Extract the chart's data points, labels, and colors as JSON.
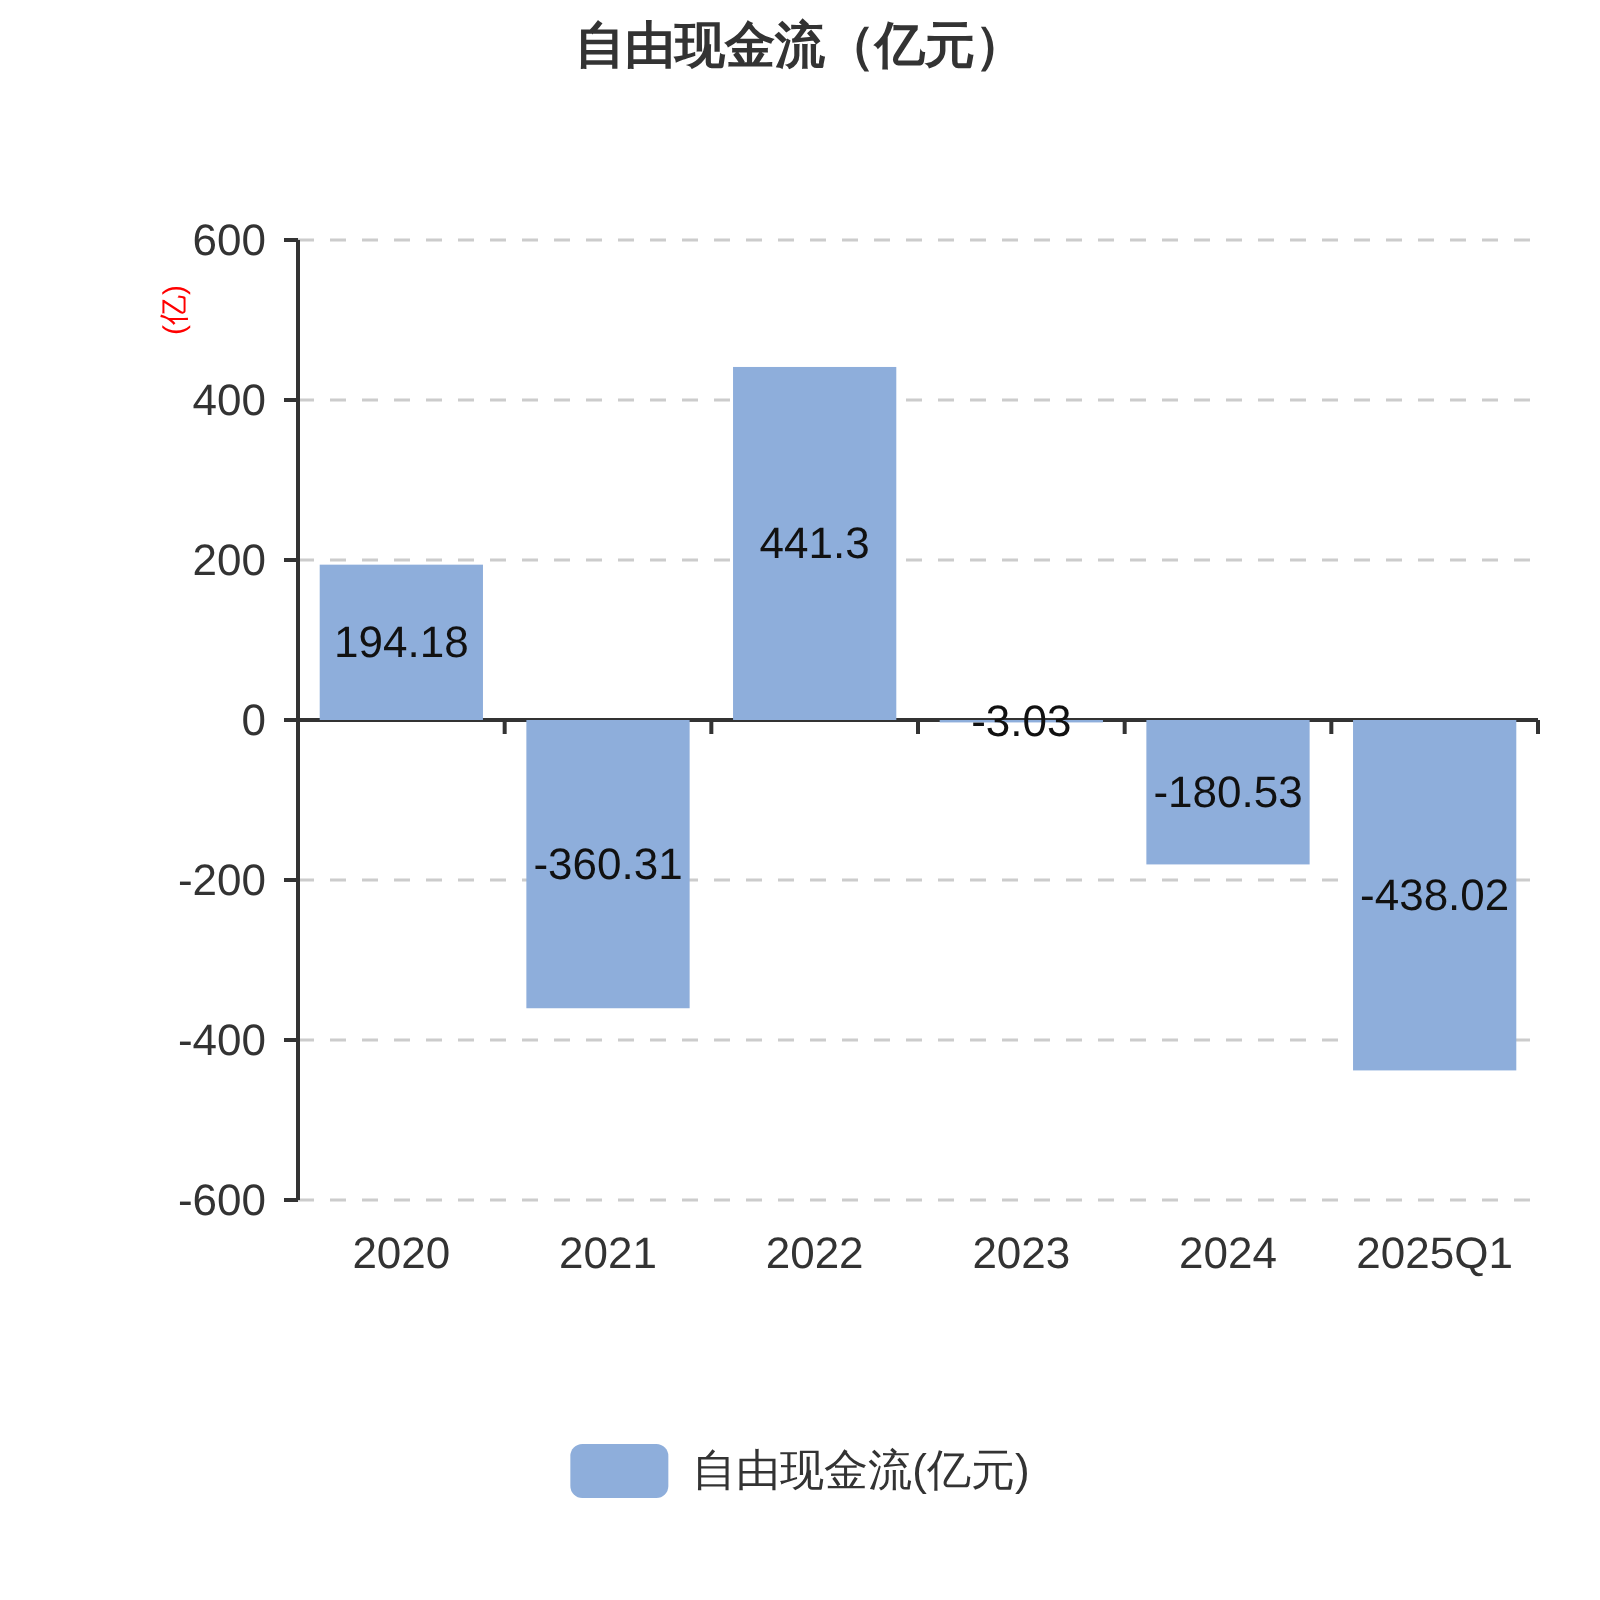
{
  "chart_data": {
    "type": "bar",
    "title": "自由现金流（亿元）",
    "ylabel": "(亿)",
    "categories": [
      "2020",
      "2021",
      "2022",
      "2023",
      "2024",
      "2025Q1"
    ],
    "series": [
      {
        "name": "自由现金流(亿元)",
        "color": "#8eaedb",
        "values": [
          194.18,
          -360.31,
          441.3,
          -3.03,
          -180.53,
          -438.02
        ]
      }
    ],
    "ylim": [
      -600,
      600
    ],
    "yticks": [
      -600,
      -400,
      -200,
      0,
      200,
      400,
      600
    ],
    "grid": "y",
    "legend": "bottom",
    "data_labels": true
  }
}
